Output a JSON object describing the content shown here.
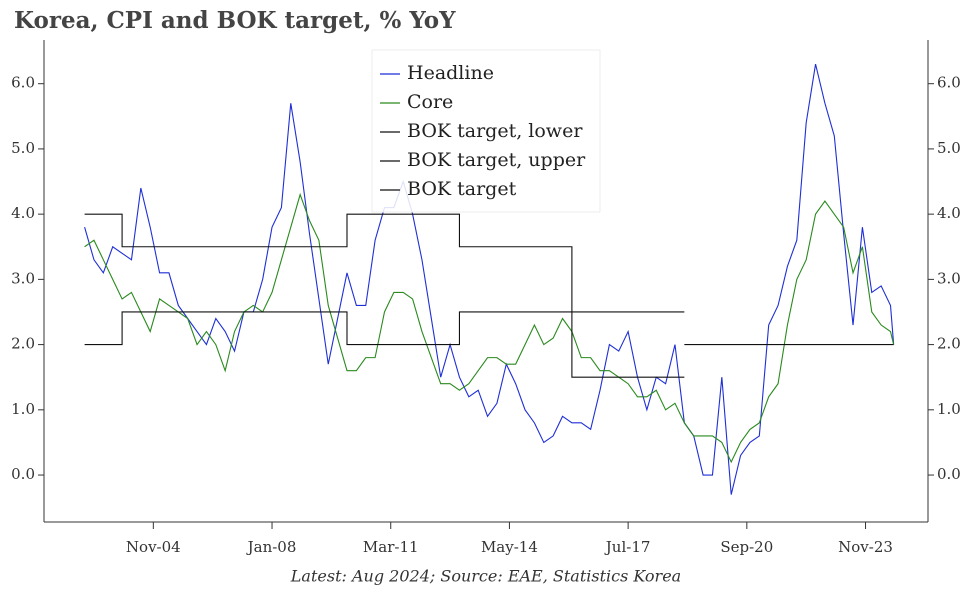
{
  "chart_data": {
    "type": "line",
    "title": "Korea, CPI and BOK target, % YoY",
    "footnote": "Latest: Aug 2024; Source: EAE, Statistics Korea",
    "x": [
      "Jan-03",
      "Apr-03",
      "Jul-03",
      "Oct-03",
      "Jan-04",
      "Apr-04",
      "Jul-04",
      "Oct-04",
      "Jan-05",
      "Apr-05",
      "Jul-05",
      "Oct-05",
      "Jan-06",
      "Apr-06",
      "Jul-06",
      "Oct-06",
      "Jan-07",
      "Apr-07",
      "Jul-07",
      "Oct-07",
      "Jan-08",
      "Apr-08",
      "Jul-08",
      "Oct-08",
      "Jan-09",
      "Apr-09",
      "Jul-09",
      "Oct-09",
      "Jan-10",
      "Apr-10",
      "Jul-10",
      "Oct-10",
      "Jan-11",
      "Apr-11",
      "Jul-11",
      "Oct-11",
      "Jan-12",
      "Apr-12",
      "Jul-12",
      "Oct-12",
      "Jan-13",
      "Apr-13",
      "Jul-13",
      "Oct-13",
      "Jan-14",
      "Apr-14",
      "Jul-14",
      "Oct-14",
      "Jan-15",
      "Apr-15",
      "Jul-15",
      "Oct-15",
      "Jan-16",
      "Apr-16",
      "Jul-16",
      "Oct-16",
      "Jan-17",
      "Apr-17",
      "Jul-17",
      "Oct-17",
      "Jan-18",
      "Apr-18",
      "Jul-18",
      "Oct-18",
      "Jan-19",
      "Apr-19",
      "Jul-19",
      "Oct-19",
      "Jan-20",
      "Apr-20",
      "Jul-20",
      "Oct-20",
      "Jan-21",
      "Apr-21",
      "Jul-21",
      "Oct-21",
      "Jan-22",
      "Apr-22",
      "Jul-22",
      "Oct-22",
      "Jan-23",
      "Apr-23",
      "Jul-23",
      "Oct-23",
      "Jan-24",
      "Apr-24",
      "Jul-24",
      "Aug-24"
    ],
    "series": [
      {
        "name": "Headline",
        "color": "#1f2fd6",
        "values": [
          3.8,
          3.3,
          3.1,
          3.5,
          3.4,
          3.3,
          4.4,
          3.8,
          3.1,
          3.1,
          2.6,
          2.4,
          2.2,
          2.0,
          2.4,
          2.2,
          1.9,
          2.5,
          2.5,
          3.0,
          3.8,
          4.1,
          5.7,
          4.8,
          3.7,
          2.7,
          1.7,
          2.4,
          3.1,
          2.6,
          2.6,
          3.6,
          4.1,
          4.1,
          4.5,
          4.0,
          3.3,
          2.4,
          1.5,
          2.0,
          1.5,
          1.2,
          1.3,
          0.9,
          1.1,
          1.7,
          1.4,
          1.0,
          0.8,
          0.5,
          0.6,
          0.9,
          0.8,
          0.8,
          0.7,
          1.3,
          2.0,
          1.9,
          2.2,
          1.5,
          1.0,
          1.5,
          1.4,
          2.0,
          0.8,
          0.6,
          0.0,
          0.0,
          1.5,
          -0.3,
          0.3,
          0.5,
          0.6,
          2.3,
          2.6,
          3.2,
          3.6,
          5.4,
          6.3,
          5.7,
          5.2,
          3.7,
          2.3,
          3.8,
          2.8,
          2.9,
          2.6,
          2.0
        ]
      },
      {
        "name": "Core",
        "color": "#2a8a1e",
        "values": [
          3.5,
          3.6,
          3.3,
          3.0,
          2.7,
          2.8,
          2.5,
          2.2,
          2.7,
          2.6,
          2.5,
          2.4,
          2.0,
          2.2,
          2.0,
          1.6,
          2.2,
          2.5,
          2.6,
          2.5,
          2.8,
          3.3,
          3.8,
          4.3,
          3.9,
          3.6,
          2.6,
          2.1,
          1.6,
          1.6,
          1.8,
          1.8,
          2.5,
          2.8,
          2.8,
          2.7,
          2.2,
          1.8,
          1.4,
          1.4,
          1.3,
          1.4,
          1.6,
          1.8,
          1.8,
          1.7,
          1.7,
          2.0,
          2.3,
          2.0,
          2.1,
          2.4,
          2.2,
          1.8,
          1.8,
          1.6,
          1.6,
          1.5,
          1.4,
          1.2,
          1.2,
          1.3,
          1.0,
          1.1,
          0.8,
          0.6,
          0.6,
          0.6,
          0.5,
          0.2,
          0.5,
          0.7,
          0.8,
          1.2,
          1.4,
          2.3,
          3.0,
          3.3,
          4.0,
          4.2,
          4.0,
          3.8,
          3.1,
          3.5,
          2.5,
          2.3,
          2.2,
          2.0
        ]
      },
      {
        "name": "BOK target, lower",
        "color": "#111111",
        "drawstyle": "steps-post",
        "values": [
          2.0,
          2.0,
          2.0,
          2.0,
          2.5,
          2.5,
          2.5,
          2.5,
          2.5,
          2.5,
          2.5,
          2.5,
          2.5,
          2.5,
          2.5,
          2.5,
          2.5,
          2.5,
          2.5,
          2.5,
          2.5,
          2.5,
          2.5,
          2.5,
          2.5,
          2.5,
          2.5,
          2.5,
          2.0,
          2.0,
          2.0,
          2.0,
          2.0,
          2.0,
          2.0,
          2.0,
          2.0,
          2.0,
          2.0,
          2.0,
          2.5,
          2.5,
          2.5,
          2.5,
          2.5,
          2.5,
          2.5,
          2.5,
          2.5,
          2.5,
          2.5,
          2.5,
          1.5,
          1.5,
          1.5,
          1.5,
          1.5,
          1.5,
          1.5,
          1.5,
          1.5,
          1.5,
          1.5,
          1.5,
          null,
          null,
          null,
          null,
          null,
          null,
          null,
          null,
          null,
          null,
          null,
          null,
          null,
          null,
          null,
          null,
          null,
          null,
          null,
          null,
          null,
          null,
          null,
          null
        ]
      },
      {
        "name": "BOK target, upper",
        "color": "#111111",
        "drawstyle": "steps-post",
        "values": [
          4.0,
          4.0,
          4.0,
          4.0,
          3.5,
          3.5,
          3.5,
          3.5,
          3.5,
          3.5,
          3.5,
          3.5,
          3.5,
          3.5,
          3.5,
          3.5,
          3.5,
          3.5,
          3.5,
          3.5,
          3.5,
          3.5,
          3.5,
          3.5,
          3.5,
          3.5,
          3.5,
          3.5,
          4.0,
          4.0,
          4.0,
          4.0,
          4.0,
          4.0,
          4.0,
          4.0,
          4.0,
          4.0,
          4.0,
          4.0,
          3.5,
          3.5,
          3.5,
          3.5,
          3.5,
          3.5,
          3.5,
          3.5,
          3.5,
          3.5,
          3.5,
          3.5,
          2.5,
          2.5,
          2.5,
          2.5,
          2.5,
          2.5,
          2.5,
          2.5,
          2.5,
          2.5,
          2.5,
          2.5,
          null,
          null,
          null,
          null,
          null,
          null,
          null,
          null,
          null,
          null,
          null,
          null,
          null,
          null,
          null,
          null,
          null,
          null,
          null,
          null,
          null,
          null,
          null,
          null
        ]
      },
      {
        "name": "BOK target",
        "color": "#111111",
        "drawstyle": "steps-post",
        "values": [
          null,
          null,
          null,
          null,
          null,
          null,
          null,
          null,
          null,
          null,
          null,
          null,
          null,
          null,
          null,
          null,
          null,
          null,
          null,
          null,
          null,
          null,
          null,
          null,
          null,
          null,
          null,
          null,
          null,
          null,
          null,
          null,
          null,
          null,
          null,
          null,
          null,
          null,
          null,
          null,
          null,
          null,
          null,
          null,
          null,
          null,
          null,
          null,
          null,
          null,
          null,
          null,
          null,
          null,
          null,
          null,
          null,
          null,
          null,
          null,
          null,
          null,
          null,
          null,
          2.0,
          2.0,
          2.0,
          2.0,
          2.0,
          2.0,
          2.0,
          2.0,
          2.0,
          2.0,
          2.0,
          2.0,
          2.0,
          2.0,
          2.0,
          2.0,
          2.0,
          2.0,
          2.0,
          2.0,
          2.0,
          2.0,
          2.0,
          2.0
        ]
      }
    ],
    "xlim": [
      "Dec-01",
      "Jul-25"
    ],
    "xticks": [
      "Nov-04",
      "Jan-08",
      "Mar-11",
      "May-14",
      "Jul-17",
      "Sep-20",
      "Nov-23"
    ],
    "ylim": [
      -0.72,
      6.67
    ],
    "yticks": [
      {
        "value": 0,
        "label": "0.0"
      },
      {
        "value": 1,
        "label": "1.0"
      },
      {
        "value": 2,
        "label": "2.0"
      },
      {
        "value": 3,
        "label": "3.0"
      },
      {
        "value": 4,
        "label": "4.0"
      },
      {
        "value": 5,
        "label": "5.0"
      },
      {
        "value": 6,
        "label": "6.0"
      }
    ],
    "y2lim": [
      -0.72,
      6.67
    ],
    "y2ticks": [
      {
        "value": 0,
        "label": "0.0"
      },
      {
        "value": 1,
        "label": "1.0"
      },
      {
        "value": 2,
        "label": "2.0"
      },
      {
        "value": 3,
        "label": "3.0"
      },
      {
        "value": 4,
        "label": "4.0"
      },
      {
        "value": 5,
        "label": "5.0"
      },
      {
        "value": 6,
        "label": "6.0"
      }
    ],
    "legend": "upper center"
  }
}
